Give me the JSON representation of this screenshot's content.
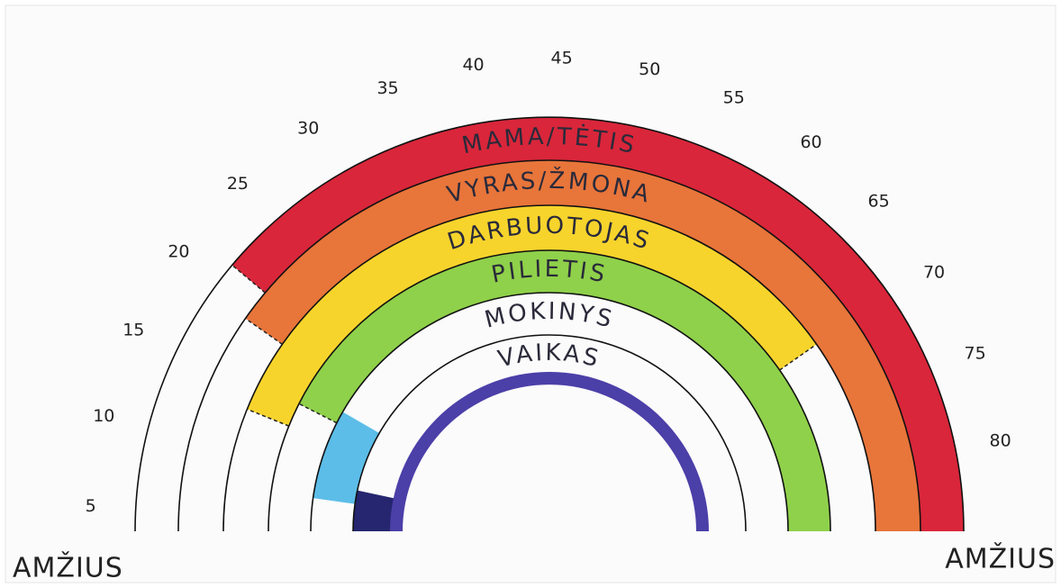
{
  "ages": [
    5,
    10,
    15,
    20,
    25,
    30,
    35,
    40,
    45,
    50,
    55,
    60,
    65,
    70,
    75,
    80
  ],
  "roles": [
    "MAMA/TĖTIS",
    "VYRAS/ŽMONA",
    "DARBUOTOJAS",
    "PILIETIS",
    "MOKINYS",
    "VAIKAS"
  ],
  "axis_label_left": "AMŽIUS",
  "axis_label_right": "AMŽIUS"
}
